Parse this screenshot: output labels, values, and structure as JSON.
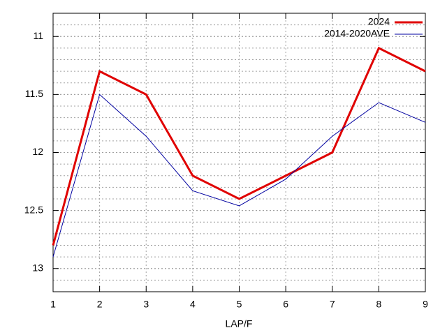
{
  "chart_data": {
    "type": "line",
    "xlabel": "LAP/F",
    "x": [
      1,
      2,
      3,
      4,
      5,
      6,
      7,
      8,
      9
    ],
    "xlim": [
      1,
      9
    ],
    "xticks": [
      1,
      2,
      3,
      4,
      5,
      6,
      7,
      8,
      9
    ],
    "ylim": [
      13.2,
      10.8
    ],
    "yticks": [
      11,
      11.5,
      12,
      12.5,
      13
    ],
    "yminor_step": 0.1,
    "grid": true,
    "legend": "top-right",
    "series": [
      {
        "name": "2024",
        "color": "#e00000",
        "width": 3,
        "values": [
          12.8,
          11.3,
          11.5,
          12.2,
          12.4,
          12.2,
          12.0,
          11.1,
          11.3
        ]
      },
      {
        "name": "2014-2020AVE",
        "color": "#0000a0",
        "width": 1,
        "values": [
          12.9,
          11.5,
          11.86,
          12.33,
          12.46,
          12.23,
          11.86,
          11.57,
          11.74
        ]
      }
    ]
  }
}
